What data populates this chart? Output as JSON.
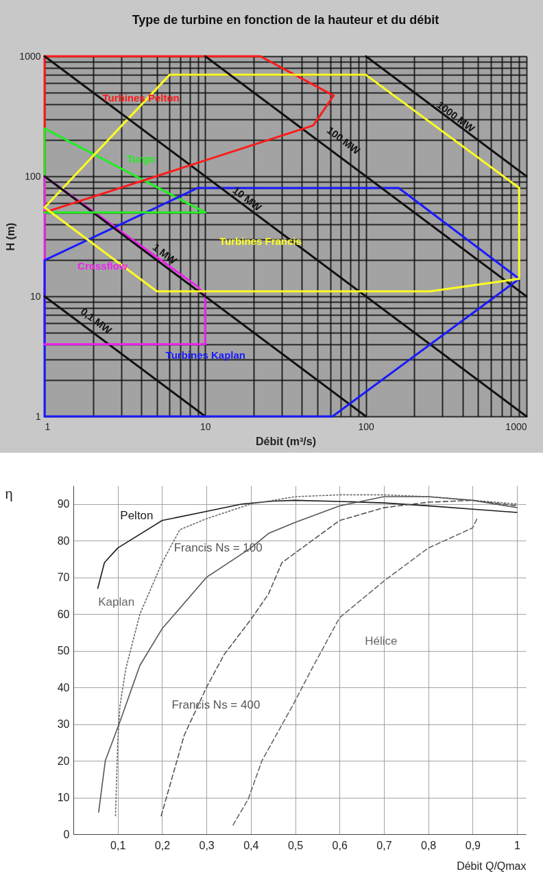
{
  "chart_data": [
    {
      "type": "line",
      "title": "Type de turbine en fonction de la hauteur et du débit",
      "xlabel": "Débit (m³/s)",
      "ylabel": "H (m)",
      "log": "xy",
      "xlim": [
        1,
        1000
      ],
      "ylim": [
        1,
        1000
      ],
      "xticks": [
        1,
        {
          "value": 2,
          "label": null
        },
        {
          "value": 3,
          "label": null
        },
        {
          "value": 4,
          "label": null
        },
        {
          "value": 5,
          "label": null
        },
        {
          "value": 6,
          "label": null
        },
        {
          "value": 7,
          "label": null
        },
        {
          "value": 8,
          "label": null
        },
        {
          "value": 9,
          "label": null
        },
        10,
        {
          "value": 20,
          "label": null
        },
        {
          "value": 30,
          "label": null
        },
        {
          "value": 40,
          "label": null
        },
        {
          "value": 50,
          "label": null
        },
        {
          "value": 60,
          "label": null
        },
        {
          "value": 70,
          "label": null
        },
        {
          "value": 80,
          "label": null
        },
        {
          "value": 90,
          "label": null
        },
        100,
        {
          "value": 200,
          "label": null
        },
        {
          "value": 300,
          "label": null
        },
        {
          "value": 400,
          "label": null
        },
        {
          "value": 500,
          "label": null
        },
        {
          "value": 600,
          "label": null
        },
        {
          "value": 700,
          "label": null
        },
        {
          "value": 800,
          "label": null
        },
        {
          "value": 900,
          "label": null
        },
        1000
      ],
      "yticks": [
        1,
        {
          "value": 2,
          "label": null
        },
        {
          "value": 3,
          "label": null
        },
        {
          "value": 4,
          "label": null
        },
        {
          "value": 5,
          "label": null
        },
        {
          "value": 6,
          "label": null
        },
        {
          "value": 7,
          "label": null
        },
        {
          "value": 8,
          "label": null
        },
        {
          "value": 9,
          "label": null
        },
        10,
        {
          "value": 20,
          "label": null
        },
        {
          "value": 30,
          "label": null
        },
        {
          "value": 40,
          "label": null
        },
        {
          "value": 50,
          "label": null
        },
        {
          "value": 60,
          "label": null
        },
        {
          "value": 70,
          "label": null
        },
        {
          "value": 80,
          "label": null
        },
        {
          "value": 90,
          "label": null
        },
        100,
        {
          "value": 200,
          "label": null
        },
        {
          "value": 300,
          "label": null
        },
        {
          "value": 400,
          "label": null
        },
        {
          "value": 500,
          "label": null
        },
        {
          "value": 600,
          "label": null
        },
        {
          "value": 700,
          "label": null
        },
        {
          "value": 800,
          "label": null
        },
        {
          "value": 900,
          "label": null
        },
        1000
      ],
      "grid": true,
      "legend": false,
      "series": [
        {
          "name": "Turbines Pelton",
          "color": "#ff1a1a",
          "x": [
            1,
            1,
            22,
            63
          ],
          "values": [
            50,
            1000,
            1000,
            470
          ]
        },
        {
          "name": "Turgo",
          "color": "#22ee22",
          "x": [
            1,
            1,
            10
          ],
          "values": [
            50,
            250,
            50
          ]
        },
        {
          "name": "Crossflow",
          "color": "#ee22ee",
          "x": [
            1,
            1,
            9,
            10,
            10
          ],
          "values": [
            4,
            100,
            12,
            10,
            4
          ]
        },
        {
          "name": "Turbines Kaplan",
          "color": "#1a1aff",
          "x": [
            1,
            1,
            9,
            160,
            900
          ],
          "values": [
            1,
            20,
            80,
            80,
            14
          ]
        },
        {
          "name": "Turbines Francis",
          "color": "#ffff22",
          "x": [
            1,
            6,
            100,
            900,
            900
          ],
          "values": [
            55,
            700,
            700,
            80,
            14
          ]
        },
        {
          "name": "0,1 MW",
          "color": "#111111",
          "x": [
            1,
            10
          ],
          "values": [
            10,
            1
          ]
        },
        {
          "name": "1 MW",
          "color": "#111111",
          "x": [
            1,
            100
          ],
          "values": [
            100,
            1
          ]
        },
        {
          "name": "10 MW",
          "color": "#111111",
          "x": [
            1,
            1000
          ],
          "values": [
            1000,
            1
          ]
        },
        {
          "name": "100 MW",
          "color": "#111111",
          "x": [
            10,
            1000
          ],
          "values": [
            1000,
            10
          ]
        },
        {
          "name": "1000 MW",
          "color": "#111111",
          "x": [
            100,
            1000
          ],
          "values": [
            1000,
            100
          ]
        },
        {
          "color": "#ff1a1a",
          "x": [
            1,
            47,
            63
          ],
          "values": [
            50,
            265,
            470
          ]
        },
        {
          "color": "#22ee22",
          "x": [
            1,
            10
          ],
          "values": [
            50,
            50
          ]
        },
        {
          "color": "#ee22ee",
          "x": [
            1,
            10
          ],
          "values": [
            4,
            4
          ]
        },
        {
          "color": "#1a1aff",
          "x": [
            1,
            62,
            900
          ],
          "values": [
            1,
            1,
            14
          ]
        },
        {
          "color": "#ffff22",
          "x": [
            1,
            5,
            250,
            900
          ],
          "values": [
            55,
            11,
            11,
            14
          ]
        }
      ]
    },
    {
      "type": "line",
      "xlabel": "Débit Q/Qmax",
      "ylabel": "η",
      "xlim": [
        0,
        1.02
      ],
      "ylim": [
        0,
        95
      ],
      "xticks": [
        {
          "value": 0.1,
          "label": "0,1"
        },
        {
          "value": 0.2,
          "label": "0,2"
        },
        {
          "value": 0.3,
          "label": "0,3"
        },
        {
          "value": 0.4,
          "label": "0,4"
        },
        {
          "value": 0.5,
          "label": "0,5"
        },
        {
          "value": 0.6,
          "label": "0,6"
        },
        {
          "value": 0.7,
          "label": "0,7"
        },
        {
          "value": 0.8,
          "label": "0,8"
        },
        {
          "value": 0.9,
          "label": "0,9"
        },
        1
      ],
      "yticks": [
        0,
        10,
        20,
        30,
        40,
        50,
        60,
        70,
        80,
        90
      ],
      "grid": true,
      "legend": false,
      "series": [
        {
          "name": "Pelton",
          "color": "#1a1a1a",
          "line_style": "solid",
          "x": [
            0.055,
            0.07,
            0.1,
            0.2,
            0.3,
            0.38,
            0.45,
            0.5,
            0.6,
            0.7,
            0.8,
            0.9,
            1
          ],
          "values": [
            67,
            74,
            78,
            85.5,
            88,
            90,
            90.8,
            91,
            90.7,
            90.3,
            89.5,
            88.6,
            87.7
          ]
        },
        {
          "name": "Kaplan",
          "color": "#666666",
          "line_style": "dotted",
          "x": [
            0.095,
            0.1,
            0.105,
            0.118,
            0.15,
            0.2,
            0.24,
            0.3,
            0.4,
            0.5,
            0.6,
            0.7,
            0.8,
            0.9,
            1
          ],
          "values": [
            5,
            25,
            35,
            45,
            60,
            74,
            83,
            86,
            90,
            92,
            92.5,
            92.5,
            92,
            91,
            90
          ]
        },
        {
          "name": "Francis Ns = 100",
          "color": "#555555",
          "line_style": "solid",
          "x": [
            0.057,
            0.072,
            0.106,
            0.15,
            0.2,
            0.3,
            0.4,
            0.44,
            0.5,
            0.6,
            0.7,
            0.8,
            0.9,
            1
          ],
          "values": [
            6,
            20,
            31,
            46,
            56,
            70,
            78,
            82,
            85,
            89.5,
            92,
            92,
            91,
            89
          ]
        },
        {
          "name": "Francis Ns = 400",
          "color": "#555555",
          "line_style": "dashed",
          "x": [
            0.198,
            0.25,
            0.3,
            0.34,
            0.4,
            0.44,
            0.47,
            0.6,
            0.7,
            0.8,
            0.9,
            1
          ],
          "values": [
            5,
            27,
            40,
            49,
            58.5,
            65.5,
            74,
            85.5,
            89,
            90.5,
            91,
            89.5
          ]
        },
        {
          "name": "Hélice",
          "color": "#666666",
          "line_style": "dashed",
          "x": [
            0.36,
            0.394,
            0.425,
            0.494,
            0.535,
            0.6,
            0.7,
            0.8,
            0.9,
            0.91
          ],
          "values": [
            2.5,
            9.5,
            20,
            35,
            44.5,
            59,
            69,
            78,
            83.5,
            86
          ]
        }
      ]
    }
  ]
}
